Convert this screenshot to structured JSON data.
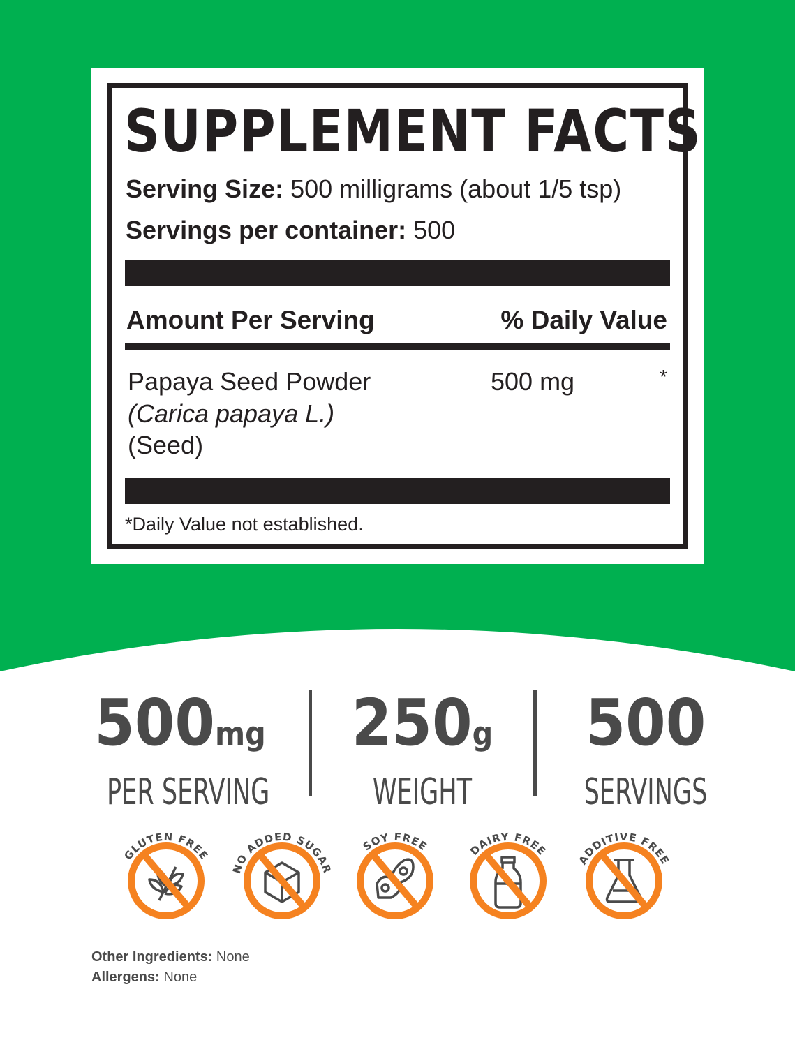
{
  "colors": {
    "background_green": "#00b050",
    "badge_orange": "#f58220",
    "text_dark": "#231f20",
    "stat_gray": "#4a4a4a"
  },
  "facts": {
    "title": "SUPPLEMENT FACTS",
    "serving_size_label": "Serving Size:",
    "serving_size_value": "500 milligrams (about 1/5 tsp)",
    "servings_label": "Servings per container:",
    "servings_value": "500",
    "amount_header": "Amount Per Serving",
    "dv_header": "% Daily Value",
    "ingredient": {
      "name": "Papaya Seed Powder",
      "latin": "(Carica papaya L.)",
      "part": "(Seed)",
      "amount": "500 mg",
      "dv": "*"
    },
    "footnote": "*Daily Value not established."
  },
  "stats": [
    {
      "value": "500",
      "unit": "mg",
      "label": "PER SERVING"
    },
    {
      "value": "250",
      "unit": "g",
      "label": "WEIGHT"
    },
    {
      "value": "500",
      "unit": "",
      "label": "SERVINGS"
    }
  ],
  "badges": [
    {
      "label": "GLUTEN FREE",
      "icon": "wheat-icon"
    },
    {
      "label": "NO ADDED SUGAR",
      "icon": "sugar-cube-icon"
    },
    {
      "label": "SOY FREE",
      "icon": "soybean-icon"
    },
    {
      "label": "DAIRY FREE",
      "icon": "milk-bottle-icon"
    },
    {
      "label": "ADDITIVE FREE",
      "icon": "flask-icon"
    }
  ],
  "footer": {
    "other_label": "Other Ingredients:",
    "other_value": "None",
    "allergens_label": "Allergens:",
    "allergens_value": "None"
  }
}
